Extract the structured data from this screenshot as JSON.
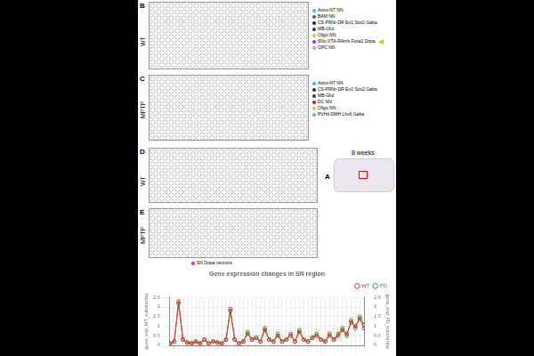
{
  "panels": [
    {
      "letter": "B",
      "label": "WT",
      "arrow_on": "SNc-VTA-RAmb Foxa1 Dopa",
      "legend": [
        {
          "name": "Astro-NT NN",
          "color": "#2ec4d6"
        },
        {
          "name": "BAM NN",
          "color": "#2a5bd7"
        },
        {
          "name": "CS-PRNr-DR En1 Sox2 Gaba",
          "color": "#2b1a6b"
        },
        {
          "name": "MB-Glut",
          "color": "#3a3a3a"
        },
        {
          "name": "Oligo NN",
          "color": "#a8d64a"
        },
        {
          "name": "SNc-VTA-RAmb Foxa1 Dopa",
          "color": "#9b2fc9"
        },
        {
          "name": "OPC NN",
          "color": "#e88ad8"
        }
      ]
    },
    {
      "letter": "C",
      "label": "MPTP",
      "legend": [
        {
          "name": "Astro-NT NN",
          "color": "#2ec4d6"
        },
        {
          "name": "CS-PRNr-DR En1 Sox2 Gaba",
          "color": "#2b1a6b"
        },
        {
          "name": "MB-Glut",
          "color": "#3a3a3a"
        },
        {
          "name": "DC NN",
          "color": "#a32020"
        },
        {
          "name": "Oligo NN",
          "color": "#a8d64a"
        },
        {
          "name": "PVHd-DMH Lhx6 Gaba",
          "color": "#6fa8dc"
        }
      ]
    },
    {
      "letter": "D",
      "label": "WT"
    },
    {
      "letter": "E",
      "label": "MPTP"
    }
  ],
  "inset": {
    "letter": "A",
    "title": "8 weeks"
  },
  "marker_legend": {
    "name": "SN Dopa neurons",
    "color": "#d030c0"
  },
  "chart_data": {
    "type": "line",
    "title": "Gene expression changes in SN region",
    "y_label": "gene_exp_WT_substantia",
    "y2_label": "gene_exp_PD_substantia",
    "categories": [
      null,
      null,
      null,
      null,
      null,
      null,
      null,
      null,
      null,
      null,
      null,
      null,
      null,
      null,
      null,
      null,
      null,
      null,
      null,
      null,
      null,
      null,
      null,
      null,
      null,
      null,
      null,
      null,
      null,
      null,
      null,
      null,
      null,
      null,
      null,
      null,
      null,
      null,
      null,
      null,
      null,
      null,
      null,
      null,
      null,
      null
    ],
    "ylim": [
      0,
      2.5
    ],
    "yticks": [
      0,
      0.5,
      1,
      1.5,
      2,
      2.5
    ],
    "y2lim": [
      0,
      2.5
    ],
    "y2ticks": [
      0,
      0.5,
      1,
      1.5,
      2,
      2.5
    ],
    "grid": true,
    "legend": "top",
    "tick_labels": "y",
    "marker": "circle",
    "series": [
      {
        "name": "WT",
        "color": "#e03030",
        "line_style": "solid",
        "values": [
          0.1,
          0.2,
          2.3,
          0.3,
          0.15,
          0.1,
          0.2,
          0.1,
          0.3,
          0.1,
          0.2,
          0.15,
          0.1,
          0.3,
          1.9,
          0.3,
          0.1,
          0.2,
          0.6,
          0.3,
          0.4,
          0.2,
          0.9,
          0.3,
          0.2,
          0.5,
          0.2,
          0.3,
          0.6,
          0.2,
          0.7,
          0.3,
          0.2,
          0.4,
          0.5,
          0.3,
          0.2,
          0.6,
          0.3,
          0.5,
          0.8,
          0.6,
          1.2,
          1.0,
          1.4,
          0.9
        ]
      },
      {
        "name": "PD",
        "color": "#30a030",
        "axis": "y2",
        "line_style": "solid",
        "values": [
          0.1,
          0.2,
          2.2,
          0.3,
          0.15,
          0.1,
          0.2,
          0.1,
          0.3,
          0.1,
          0.2,
          0.15,
          0.1,
          0.3,
          1.8,
          0.3,
          0.1,
          0.2,
          0.7,
          0.3,
          0.4,
          0.2,
          0.8,
          0.3,
          0.2,
          0.6,
          0.2,
          0.3,
          0.5,
          0.2,
          0.8,
          0.3,
          0.2,
          0.4,
          0.6,
          0.3,
          0.2,
          0.5,
          0.3,
          0.6,
          0.9,
          0.5,
          1.3,
          0.9,
          1.5,
          1.1
        ]
      }
    ]
  }
}
